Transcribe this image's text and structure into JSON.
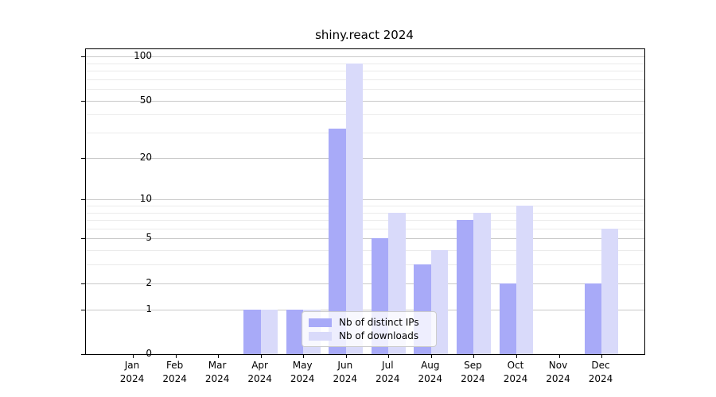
{
  "title": "shiny.react 2024",
  "colors": {
    "ips_bar": "#a8aaf8",
    "downloads_bar": "#d9dafa",
    "grid_major": "#c9c9c9",
    "grid_minor": "#ebebeb",
    "spine": "#000000",
    "legend_border": "#cccccc"
  },
  "legend": {
    "items": [
      {
        "label": "Nb of distinct IPs",
        "series": "ips"
      },
      {
        "label": "Nb of downloads",
        "series": "downloads"
      }
    ]
  },
  "chart_data": {
    "type": "bar",
    "title": "shiny.react 2024",
    "categories": [
      "Jan 2024",
      "Feb 2024",
      "Mar 2024",
      "Apr 2024",
      "May 2024",
      "Jun 2024",
      "Jul 2024",
      "Aug 2024",
      "Sep 2024",
      "Oct 2024",
      "Nov 2024",
      "Dec 2024"
    ],
    "series": [
      {
        "name": "Nb of distinct IPs",
        "key": "ips",
        "color": "#a8aaf8",
        "values": [
          0,
          0,
          0,
          1,
          1,
          32,
          5,
          3,
          7,
          2,
          0,
          2
        ]
      },
      {
        "name": "Nb of downloads",
        "key": "downloads",
        "color": "#d9dafa",
        "values": [
          0,
          0,
          0,
          1,
          1,
          90,
          8,
          4,
          8,
          9,
          0,
          6
        ]
      }
    ],
    "x_axis": {
      "months": [
        "Jan",
        "Feb",
        "Mar",
        "Apr",
        "May",
        "Jun",
        "Jul",
        "Aug",
        "Sep",
        "Oct",
        "Nov",
        "Dec"
      ],
      "year": "2024"
    },
    "y_axis": {
      "scale": "pseudo-log: position proportional to log10(1+v)",
      "major_ticks": [
        0,
        1,
        2,
        5,
        10,
        20,
        50,
        100
      ],
      "minor_gridlines": [
        3,
        4,
        6,
        7,
        8,
        9,
        30,
        40,
        60,
        70,
        80,
        90
      ],
      "ylim": [
        0,
        112
      ]
    },
    "grid": "horizontal major and minor gridlines only",
    "legend_position": "inside axes, lower center-left"
  }
}
